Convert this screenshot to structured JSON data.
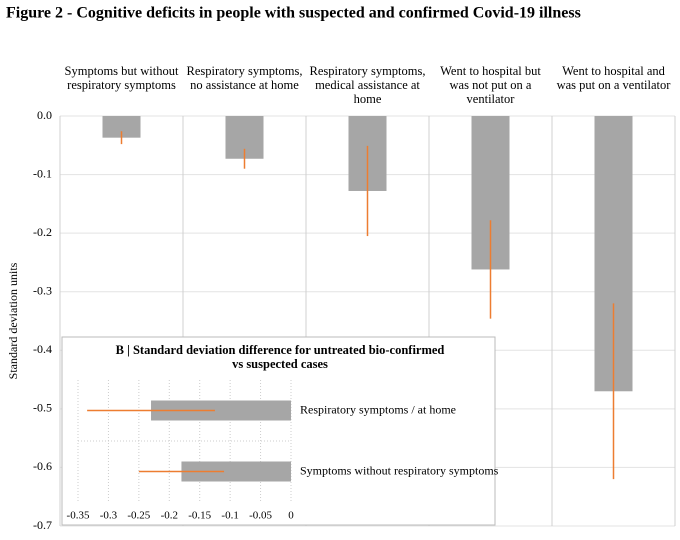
{
  "title": "Figure 2 - Cognitive deficits in people with suspected and confirmed Covid-19 illness",
  "chart_data": [
    {
      "type": "bar",
      "categories": [
        "Symptoms but without respiratory symptoms",
        "Respiratory symptoms, no assistance at home",
        "Respiratory symptoms, medical assistance at home",
        "Went to hospital but was not put on a ventilator",
        "Went to hospital and was put on a ventilator"
      ],
      "values": [
        -0.037,
        -0.073,
        -0.128,
        -0.262,
        -0.47
      ],
      "errors": [
        0.011,
        0.017,
        0.077,
        0.084,
        0.15
      ],
      "color": "#a6a6a6",
      "error_color": "#ed7d31",
      "y_label": "Standard deviation units",
      "ylim": [
        -0.7,
        0
      ],
      "yticks": [
        {
          "value": 0,
          "label": "0.0"
        },
        -0.1,
        -0.2,
        -0.3,
        -0.4,
        -0.5,
        -0.6,
        -0.7
      ],
      "grid": true
    },
    {
      "type": "hbar",
      "title": "B | Standard deviation difference for untreated bio-confirmed vs suspected cases",
      "categories": [
        "Respiratory symptoms / at home",
        "Symptoms without respiratory symptoms"
      ],
      "values": [
        -0.23,
        -0.18
      ],
      "errors": [
        0.105,
        0.07
      ],
      "color": "#a6a6a6",
      "error_color": "#ed7d31",
      "xlim": [
        -0.35,
        0
      ],
      "xticks": [
        -0.35,
        -0.3,
        -0.25,
        -0.2,
        -0.15,
        -0.1,
        -0.05,
        0
      ],
      "grid": true
    }
  ]
}
